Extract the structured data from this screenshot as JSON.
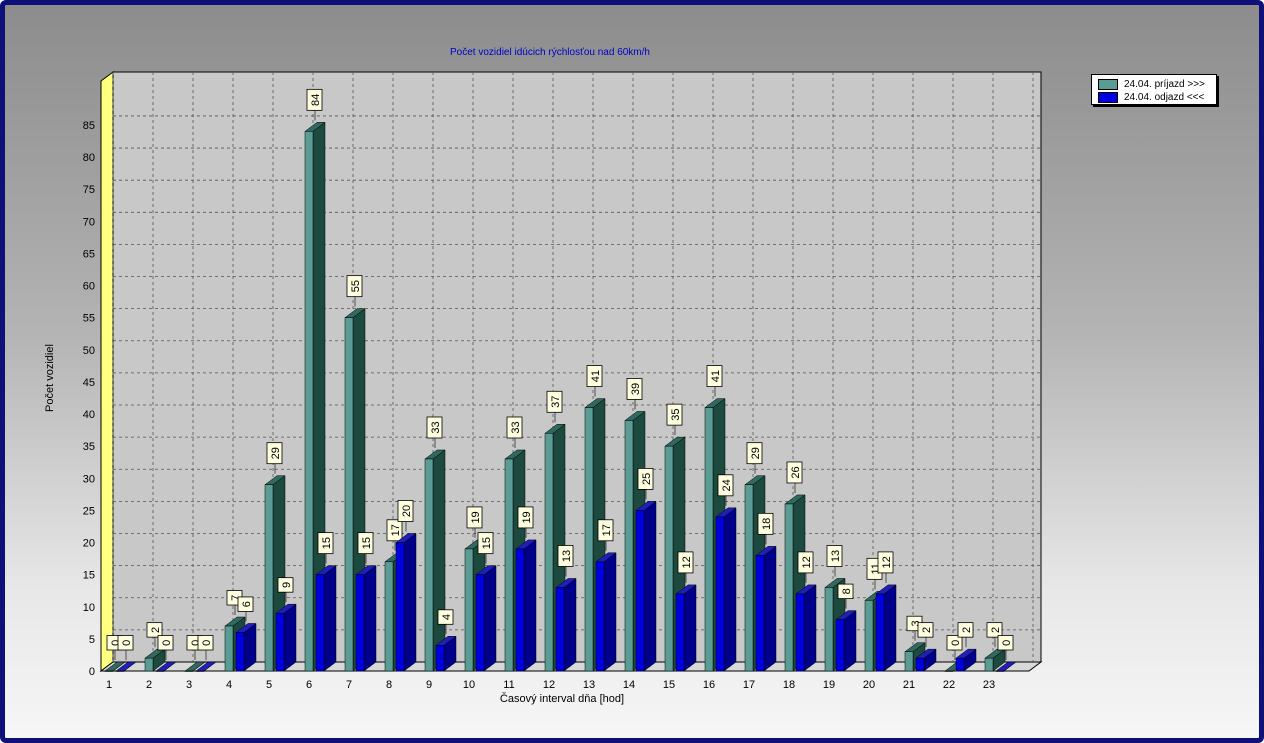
{
  "colors": {
    "series1_front": "#5a9c94",
    "series1_side": "#1d4a3f",
    "series1_top": "#2f6a60",
    "series2_front": "#0000e0",
    "series2_side": "#00008a",
    "series2_top": "#2020b8",
    "back_wall": "#c8c8c8",
    "left_wall": "#ffff80",
    "title_color": "#0000cc"
  },
  "chart_data": {
    "type": "bar",
    "title": "Počet vozidiel idúcich rýchlosťou nad 60km/h",
    "xlabel": "Časový interval dňa [hod]",
    "ylabel": "Počet vozidiel",
    "ylim": [
      0,
      90
    ],
    "yticks": [
      0,
      5,
      10,
      15,
      20,
      25,
      30,
      35,
      40,
      45,
      50,
      55,
      60,
      65,
      70,
      75,
      80,
      85
    ],
    "categories": [
      "1",
      "2",
      "3",
      "4",
      "5",
      "6",
      "7",
      "8",
      "9",
      "10",
      "11",
      "12",
      "13",
      "14",
      "15",
      "16",
      "17",
      "18",
      "19",
      "20",
      "21",
      "22",
      "23"
    ],
    "series": [
      {
        "name": "24.04.  príjazd >>>",
        "values": [
          0,
          2,
          0,
          7,
          29,
          84,
          55,
          17,
          33,
          19,
          33,
          37,
          41,
          39,
          35,
          41,
          29,
          26,
          13,
          11,
          3,
          0,
          2
        ]
      },
      {
        "name": "24.04.  odjazd <<<",
        "values": [
          0,
          0,
          0,
          6,
          9,
          15,
          15,
          20,
          4,
          15,
          19,
          13,
          17,
          25,
          12,
          24,
          18,
          12,
          8,
          12,
          2,
          2,
          0
        ]
      }
    ],
    "grid": true,
    "legend_position": "top-right"
  }
}
